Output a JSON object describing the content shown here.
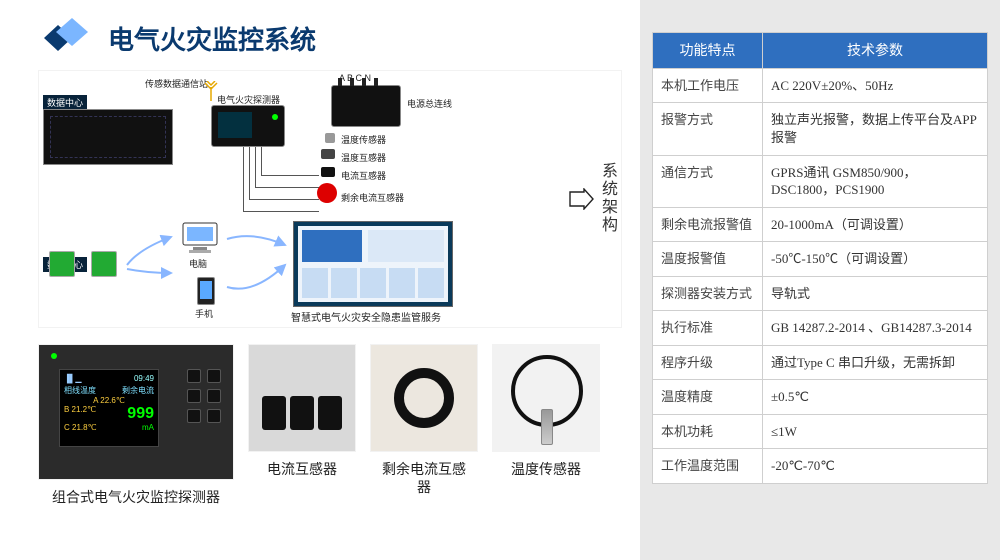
{
  "colors": {
    "brand_dark": "#0a3a6f",
    "brand_mid": "#2f6fbf",
    "brand_light": "#7bb6ff",
    "page_bg": "#e8e8e8",
    "panel_bg": "#ffffff",
    "border": "#cfcfcf"
  },
  "title": "电气火灾监控系统",
  "arch_label": "系统架构",
  "diagram": {
    "labels": {
      "station": "传感数据通信站",
      "data_center": "数据中心",
      "detector": "电气火灾探测器",
      "temp_sensor": "温度传感器",
      "temp_transformer": "温度互感器",
      "current_transformer": "电流互感器",
      "residual_ct": "剩余电流互感器",
      "pc": "电脑",
      "phone": "手机",
      "service": "智慧式电气火灾安全隐患监管服务",
      "bus": "电源总连线",
      "abcn": "A  B  C  N"
    }
  },
  "detector_screen": {
    "time": "09:49",
    "header_left": "相线温度",
    "header_right": "剩余电流",
    "rows": [
      "A  22.6℃",
      "B  21.2℃",
      "C  21.8℃"
    ],
    "value": "999",
    "unit": "mA"
  },
  "products": [
    {
      "label": "组合式电气火灾监控探测器"
    },
    {
      "label": "电流互感器"
    },
    {
      "label": "剩余电流互感器"
    },
    {
      "label": "温度传感器"
    }
  ],
  "spec": {
    "head_left": "功能特点",
    "head_right": "技术参数",
    "rows": [
      {
        "k": "本机工作电压",
        "v": "AC 220V±20%、50Hz"
      },
      {
        "k": "报警方式",
        "v": "独立声光报警，数据上传平台及APP报警"
      },
      {
        "k": "通信方式",
        "v": "GPRS通讯 GSM850/900，DSC1800，PCS1900"
      },
      {
        "k": "剩余电流报警值",
        "v": "20-1000mA（可调设置）"
      },
      {
        "k": "温度报警值",
        "v": "-50℃-150℃（可调设置）"
      },
      {
        "k": "探测器安装方式",
        "v": "导轨式"
      },
      {
        "k": "执行标准",
        "v": "GB 14287.2-2014 、GB14287.3-2014"
      },
      {
        "k": "程序升级",
        "v": "通过Type C 串口升级，无需拆卸"
      },
      {
        "k": "温度精度",
        "v": "±0.5℃"
      },
      {
        "k": "本机功耗",
        "v": "≤1W"
      },
      {
        "k": "工作温度范围",
        "v": "-20℃-70℃"
      }
    ]
  }
}
